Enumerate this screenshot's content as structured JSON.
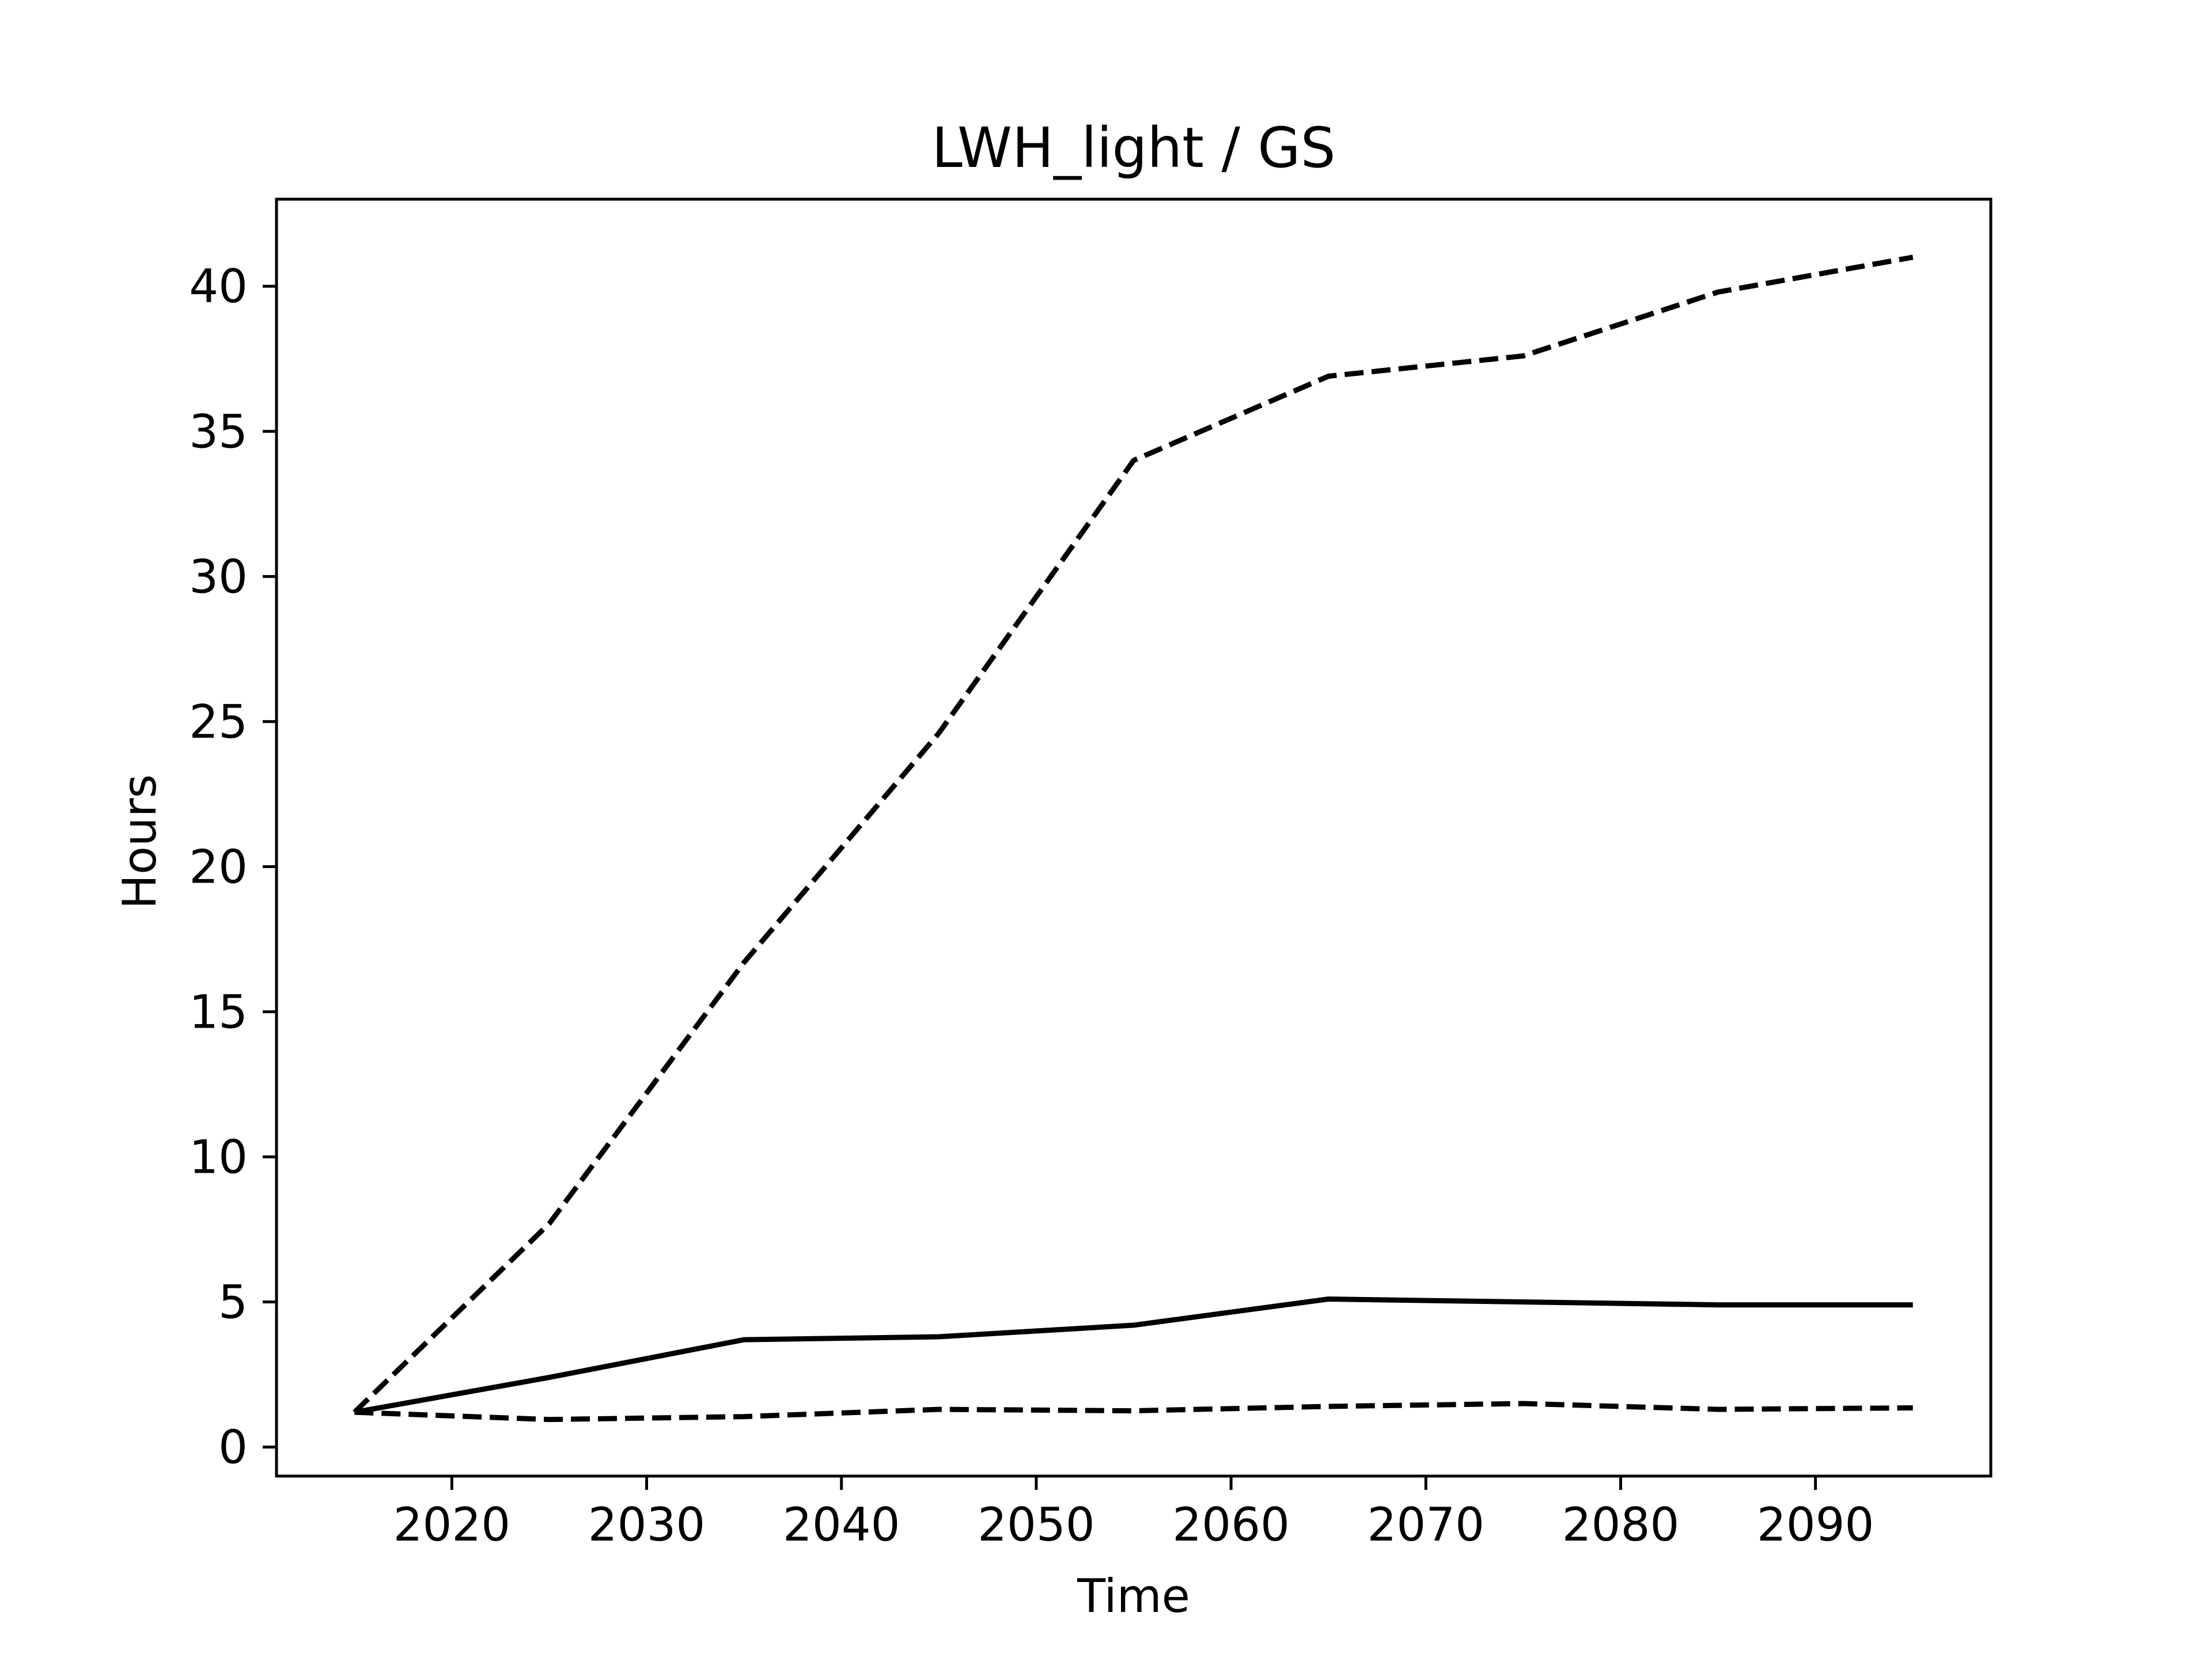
{
  "chart_data": {
    "type": "line",
    "title": "LWH_light / GS",
    "xlabel": "Time",
    "ylabel": "Hours",
    "xlim": [
      2011,
      2099
    ],
    "ylim": [
      -1,
      43
    ],
    "xticks": [
      2020,
      2030,
      2040,
      2050,
      2060,
      2070,
      2080,
      2090
    ],
    "yticks": [
      0,
      5,
      10,
      15,
      20,
      25,
      30,
      35,
      40
    ],
    "grid": false,
    "legend": "none",
    "x": [
      2015,
      2025,
      2035,
      2045,
      2055,
      2065,
      2075,
      2085,
      2095
    ],
    "series": [
      {
        "style": "dashed",
        "color": "#000000",
        "values": [
          1.2,
          7.7,
          16.7,
          24.6,
          34.0,
          36.9,
          37.6,
          39.8,
          41.0
        ]
      },
      {
        "style": "solid",
        "color": "#000000",
        "values": [
          1.2,
          2.4,
          3.7,
          3.8,
          4.2,
          5.1,
          5.0,
          4.9,
          4.9
        ]
      },
      {
        "style": "dashed",
        "color": "#000000",
        "values": [
          1.2,
          0.95,
          1.05,
          1.3,
          1.25,
          1.4,
          1.5,
          1.3,
          1.35
        ]
      }
    ]
  }
}
